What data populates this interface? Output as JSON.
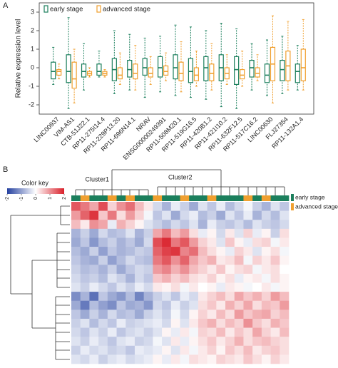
{
  "chart_data": [
    {
      "type": "box",
      "panel": "A",
      "ylabel": "Relative expression level",
      "categories": [
        "LINC00937",
        "VIM-AS1",
        "CTB-51J22.1",
        "RP11-275I14.4",
        "RP11-229P13.20",
        "RP11-696N14.1",
        "NRAV",
        "ENSG00000249391",
        "RP11-508M20.1",
        "RP11-519G16.5",
        "RP11-420B1.2",
        "RP11-421I10.2",
        "RP11-632F12.5",
        "RP11-517C16.2",
        "LINC00630",
        "FLJ27354",
        "RP11-132A1.4"
      ],
      "series": [
        {
          "name": "early stage",
          "color": "#1b7f5c",
          "values": [
            [
              -0.9,
              -0.6,
              -0.2,
              0.3,
              1.1
            ],
            [
              -2.2,
              -0.8,
              -0.2,
              0.7,
              2.7
            ],
            [
              -1.2,
              -0.5,
              -0.2,
              0.2,
              1.3
            ],
            [
              -0.5,
              -0.4,
              -0.2,
              0.2,
              0.9
            ],
            [
              -1.4,
              -0.7,
              -0.1,
              0.5,
              2.0
            ],
            [
              -1.2,
              -0.5,
              -0.1,
              0.4,
              1.8
            ],
            [
              -1.6,
              -0.4,
              0,
              0.5,
              1.6
            ],
            [
              -1.3,
              -0.5,
              0,
              0.6,
              1.7
            ],
            [
              -1.5,
              -0.6,
              0,
              0.7,
              2.3
            ],
            [
              -1.6,
              -0.8,
              -0.2,
              0.5,
              2.2
            ],
            [
              -1.7,
              -0.7,
              0,
              0.6,
              2.0
            ],
            [
              -2.1,
              -0.7,
              0,
              0.7,
              2.4
            ],
            [
              -2.2,
              -0.9,
              -0.1,
              0.6,
              2.1
            ],
            [
              -1.2,
              -0.5,
              0,
              0.4,
              1.3
            ],
            [
              -1.5,
              -0.8,
              -0.4,
              0.2,
              1.5
            ],
            [
              -1.4,
              -0.7,
              -0.1,
              0.4,
              1.7
            ],
            [
              -1.2,
              -0.8,
              -0.2,
              0.2,
              1.2
            ]
          ]
        },
        {
          "name": "advanced stage",
          "color": "#f0a030",
          "values": [
            [
              -0.6,
              -0.4,
              -0.2,
              -0.1,
              0.2
            ],
            [
              -1.9,
              -1.1,
              -0.6,
              0.3,
              1.0
            ],
            [
              -0.5,
              -0.4,
              -0.3,
              -0.2,
              0
            ],
            [
              -0.5,
              -0.4,
              -0.3,
              -0.2,
              -0.1
            ],
            [
              -0.9,
              -0.6,
              -0.4,
              0,
              0.8
            ],
            [
              -1.2,
              -0.6,
              -0.3,
              0.2,
              1.2
            ],
            [
              -0.9,
              -0.5,
              -0.3,
              0,
              0.6
            ],
            [
              -0.7,
              -0.4,
              -0.2,
              0.1,
              0.8
            ],
            [
              -1.3,
              -0.7,
              -0.3,
              0.3,
              1.4
            ],
            [
              -1.0,
              -0.7,
              -0.4,
              0,
              0.9
            ],
            [
              -1.2,
              -0.7,
              -0.3,
              0.2,
              1.3
            ],
            [
              -0.9,
              -0.6,
              -0.3,
              0,
              0.7
            ],
            [
              -1.0,
              -0.6,
              -0.4,
              -0.1,
              0.9
            ],
            [
              -0.7,
              -0.5,
              -0.3,
              0,
              0.7
            ],
            [
              -1.9,
              -0.7,
              0.2,
              1.1,
              2.8
            ],
            [
              -1.2,
              -0.7,
              0.1,
              0.9,
              2.5
            ],
            [
              -1.2,
              -0.7,
              0,
              1.0,
              2.6
            ]
          ]
        }
      ],
      "ylim": [
        -2.5,
        3.5
      ],
      "yticks": [
        -2,
        -1,
        0,
        1,
        2,
        3
      ]
    },
    {
      "type": "heatmap",
      "panel": "B",
      "key_title": "Color key",
      "key_lim": [
        -2,
        2
      ],
      "key_ticks": [
        -2,
        -1,
        0,
        1,
        2
      ],
      "key_colors": [
        "#2541a0",
        "#ffffff",
        "#d9202a"
      ],
      "clusters": [
        "Cluster1",
        "Cluster2"
      ],
      "series": [
        {
          "name": "early stage",
          "color": "#1b7f5c"
        },
        {
          "name": "advanced stage",
          "color": "#f0a030"
        }
      ],
      "column_stage": [
        0,
        1,
        0,
        0,
        1,
        0,
        1,
        0,
        0,
        1,
        0,
        0,
        1,
        0,
        0,
        1,
        0,
        0,
        0,
        1,
        0,
        1,
        0,
        0
      ],
      "matrix": [
        [
          1.5,
          1.2,
          0.8,
          1.6,
          0.4,
          1.0,
          1.3,
          0.6,
          0.2,
          -0.4,
          -0.8,
          -0.2,
          -0.5,
          -0.9,
          -0.3,
          -0.6,
          -0.2,
          -0.7,
          -0.4,
          -0.1,
          -0.5,
          -0.8,
          -0.3,
          -0.6
        ],
        [
          0.9,
          1.4,
          1.8,
          0.5,
          1.2,
          0.3,
          0.9,
          0.4,
          -0.1,
          -0.6,
          -0.3,
          -0.9,
          -0.4,
          -0.2,
          -0.7,
          -0.5,
          -0.9,
          -0.3,
          -0.6,
          -0.2,
          -0.8,
          -0.4,
          -0.7,
          -0.3
        ],
        [
          0.6,
          0.2,
          1.0,
          0.8,
          -0.2,
          0.7,
          0.4,
          0.1,
          -0.3,
          -0.5,
          -0.7,
          -0.4,
          -0.6,
          -0.3,
          -0.8,
          -0.2,
          -0.5,
          -0.6,
          -0.4,
          -0.7,
          -0.3,
          -0.5,
          -0.6,
          -0.4
        ],
        [
          -0.8,
          -0.5,
          -0.9,
          -0.4,
          -0.7,
          -0.6,
          -0.3,
          -0.8,
          -0.5,
          0.8,
          1.2,
          0.6,
          0.9,
          0.3,
          -0.2,
          0.1,
          -0.4,
          0.2,
          -0.3,
          0.4,
          -0.2,
          0.1,
          -0.5,
          0.3
        ],
        [
          -0.9,
          -0.6,
          -1.1,
          -0.7,
          -0.5,
          -0.8,
          -0.6,
          -0.9,
          -0.4,
          1.6,
          1.9,
          1.2,
          1.5,
          0.9,
          0.4,
          0.2,
          -0.3,
          0.5,
          0.1,
          -0.2,
          0.3,
          0.4,
          -0.1,
          0.2
        ],
        [
          -0.7,
          -0.9,
          -0.5,
          -1.0,
          -0.6,
          -0.8,
          -0.7,
          -0.5,
          -0.6,
          1.4,
          1.7,
          1.8,
          1.1,
          1.3,
          0.6,
          0.3,
          0.1,
          -0.2,
          0.4,
          0.2,
          -0.3,
          0.1,
          0.3,
          -0.1
        ],
        [
          -0.6,
          -0.8,
          -0.9,
          -0.5,
          -1.0,
          -0.7,
          -0.4,
          -0.6,
          -0.7,
          1.2,
          1.5,
          1.0,
          1.4,
          0.8,
          0.5,
          0.7,
          0.2,
          0.3,
          0.6,
          -0.1,
          0.4,
          0.2,
          0.5,
          0.1
        ],
        [
          -0.5,
          -0.7,
          -0.6,
          -0.8,
          -0.5,
          -0.9,
          -0.6,
          -0.4,
          -0.5,
          0.9,
          1.1,
          0.7,
          1.0,
          0.6,
          0.4,
          0.2,
          0.5,
          0.1,
          0.3,
          0.4,
          -0.1,
          0.2,
          0.3,
          0.0
        ],
        [
          -0.4,
          -0.6,
          -0.5,
          -0.7,
          -0.3,
          -0.5,
          -0.8,
          -0.4,
          -0.6,
          0.5,
          0.7,
          0.4,
          0.6,
          0.3,
          0.2,
          0.4,
          0.1,
          0.3,
          -0.2,
          0.1,
          0.2,
          -0.1,
          0.3,
          0.1
        ],
        [
          -0.3,
          -0.5,
          -0.2,
          -0.4,
          -0.6,
          -0.3,
          -0.5,
          -0.2,
          -0.4,
          0.2,
          0.1,
          0.3,
          -0.1,
          0.2,
          0.0,
          0.1,
          -0.2,
          0.2,
          0.1,
          -0.1,
          0.0,
          0.2,
          -0.1,
          0.1
        ],
        [
          -1.2,
          -0.8,
          -1.5,
          -0.6,
          -0.9,
          -1.1,
          -0.7,
          -1.3,
          -0.8,
          -0.5,
          -0.3,
          -0.6,
          -0.2,
          -0.4,
          0.2,
          0.4,
          0.6,
          0.3,
          0.8,
          0.5,
          0.7,
          0.4,
          0.9,
          0.6
        ],
        [
          -0.9,
          -1.4,
          -0.7,
          -1.0,
          -1.2,
          -0.6,
          -0.9,
          -0.8,
          -1.1,
          -0.4,
          -0.6,
          -0.2,
          -0.5,
          -0.3,
          0.3,
          0.5,
          0.2,
          0.7,
          0.4,
          0.8,
          0.3,
          0.6,
          0.5,
          0.9
        ],
        [
          -0.6,
          -0.9,
          -0.5,
          -0.8,
          -0.4,
          -0.7,
          -0.6,
          -0.9,
          -0.5,
          -0.3,
          -0.5,
          -0.1,
          -0.4,
          0.1,
          0.4,
          0.2,
          0.6,
          0.3,
          0.9,
          0.5,
          0.7,
          0.8,
          0.4,
          0.6
        ],
        [
          -0.5,
          -0.3,
          -0.7,
          -0.4,
          -0.6,
          -0.2,
          -0.5,
          -0.4,
          -0.3,
          -0.2,
          -0.4,
          0.1,
          -0.3,
          0.2,
          0.5,
          0.7,
          0.3,
          0.6,
          0.4,
          1.0,
          0.5,
          0.3,
          0.7,
          0.5
        ],
        [
          -0.4,
          -0.6,
          -0.3,
          -0.5,
          -0.2,
          -0.6,
          -0.4,
          -0.3,
          -0.5,
          -0.3,
          0.1,
          -0.2,
          0.2,
          -0.1,
          0.4,
          0.3,
          0.6,
          0.2,
          0.5,
          0.3,
          0.8,
          0.4,
          0.2,
          0.6
        ],
        [
          -0.3,
          -0.5,
          -0.2,
          -0.4,
          -0.6,
          -0.3,
          -0.2,
          -0.5,
          -0.4,
          -0.1,
          -0.3,
          0.2,
          -0.2,
          0.1,
          0.3,
          0.5,
          0.2,
          0.4,
          0.7,
          0.3,
          0.5,
          0.6,
          0.4,
          0.3
        ],
        [
          -0.5,
          -0.2,
          -0.4,
          -0.3,
          -0.5,
          -0.4,
          -0.6,
          -0.2,
          -0.3,
          -0.2,
          0.1,
          -0.3,
          0.2,
          -0.1,
          0.2,
          0.4,
          0.1,
          0.5,
          0.3,
          0.6,
          0.2,
          0.4,
          0.5,
          0.3
        ],
        [
          -0.3,
          -0.4,
          -0.2,
          -0.5,
          -0.3,
          -0.2,
          -0.4,
          -0.3,
          -0.2,
          0.1,
          -0.2,
          0.2,
          -0.1,
          0.3,
          0.2,
          0.1,
          0.4,
          0.3,
          0.2,
          0.5,
          0.3,
          0.1,
          0.4,
          0.2
        ]
      ]
    }
  ]
}
